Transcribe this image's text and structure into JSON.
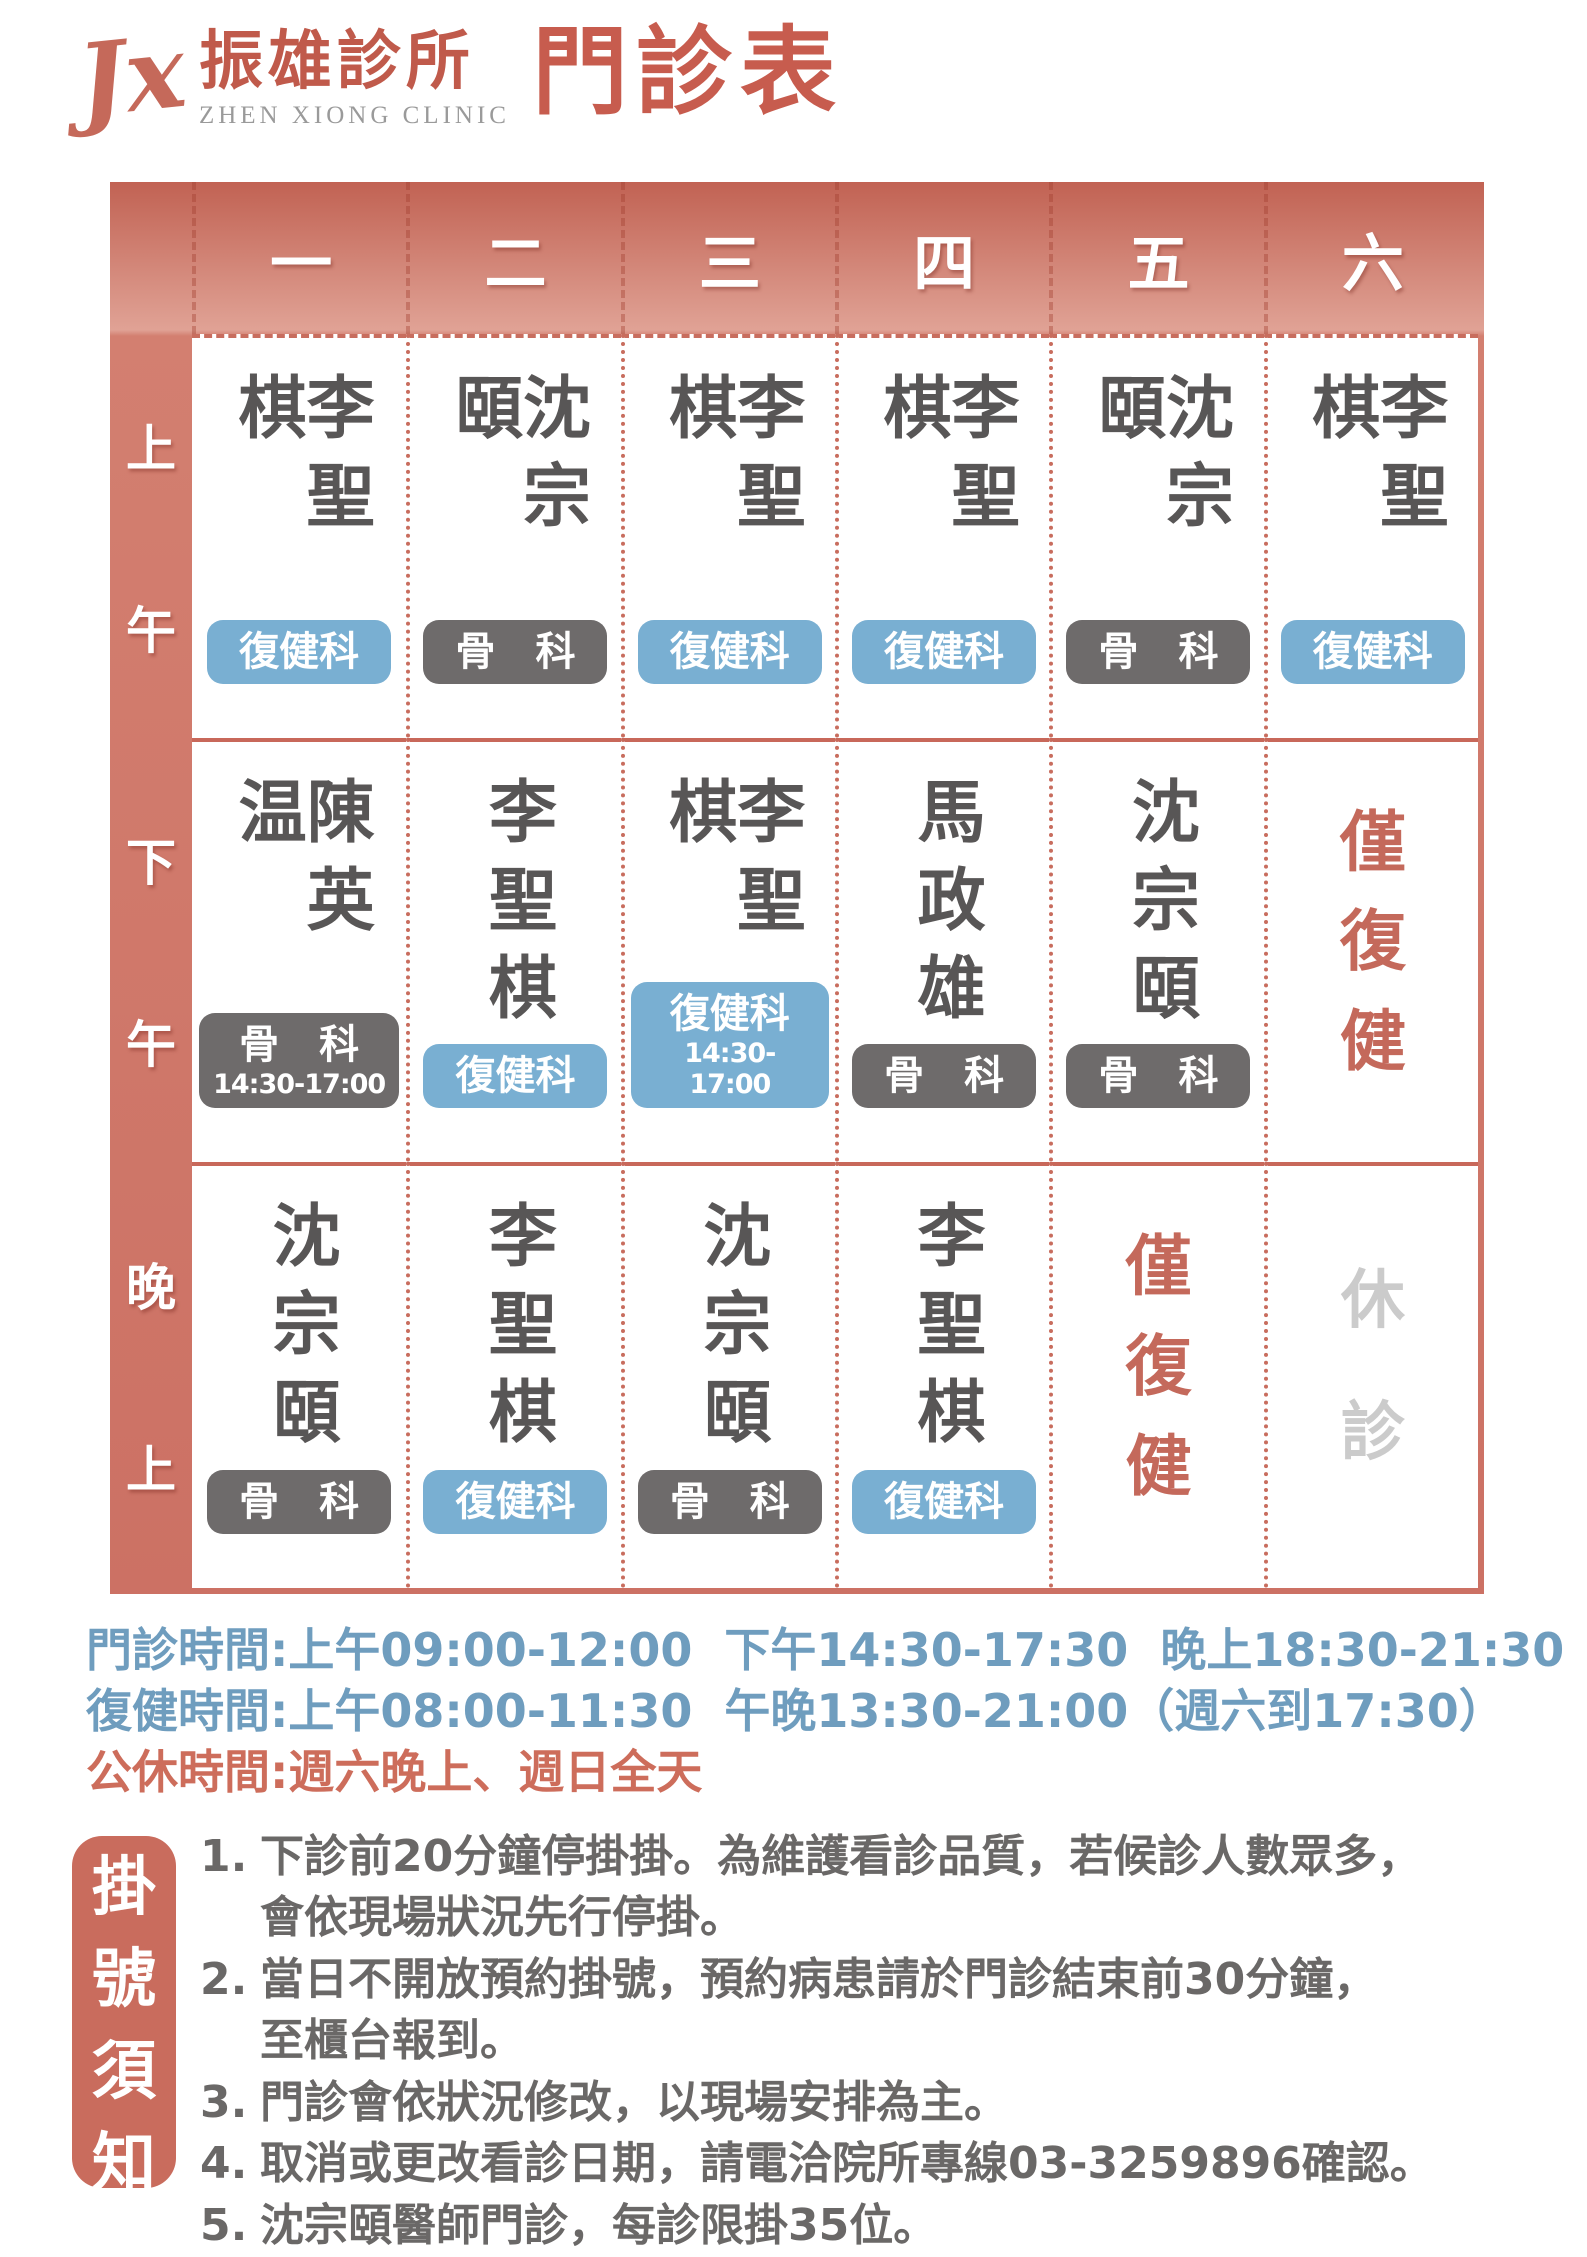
{
  "header": {
    "logo_monogram": "Jx",
    "clinic_name": "振雄診所",
    "clinic_name_en": "ZHEN XIONG CLINIC",
    "page_title": "門診表"
  },
  "colors": {
    "salmon": "#cc7164",
    "salmon_dark": "#c16253",
    "salmon_light": "#e0a295",
    "badge_rehab_blue": "#79afd2",
    "badge_ortho_gray": "#6e6b6b",
    "doctor_name_gray": "#585656",
    "hours_blue": "#6f9dbe",
    "hours_red": "#cd6d5b",
    "closed_gray": "#cbcbcb"
  },
  "table": {
    "day_headers": [
      "一",
      "二",
      "三",
      "四",
      "五",
      "六"
    ],
    "rows": [
      {
        "period": "上午",
        "cells": [
          {
            "doctor": "李聖棋",
            "badge": {
              "text": "復健科",
              "type": "rehab"
            }
          },
          {
            "doctor": "沈宗頤",
            "badge": {
              "text": "骨　科",
              "type": "ortho"
            }
          },
          {
            "doctor": "李聖棋",
            "badge": {
              "text": "復健科",
              "type": "rehab"
            }
          },
          {
            "doctor": "李聖棋",
            "badge": {
              "text": "復健科",
              "type": "rehab"
            }
          },
          {
            "doctor": "沈宗頤",
            "badge": {
              "text": "骨　科",
              "type": "ortho"
            }
          },
          {
            "doctor": "李聖棋",
            "badge": {
              "text": "復健科",
              "type": "rehab"
            }
          }
        ]
      },
      {
        "period": "下午",
        "cells": [
          {
            "doctor": "陳英温",
            "badge": {
              "text": "骨　科",
              "type": "ortho",
              "time": "14:30-17:00"
            }
          },
          {
            "doctor": "李聖棋",
            "badge": {
              "text": "復健科",
              "type": "rehab"
            }
          },
          {
            "doctor": "李聖棋",
            "badge": {
              "text": "復健科",
              "type": "rehab",
              "time": "14:30-17:00"
            }
          },
          {
            "doctor": "馬政雄",
            "badge": {
              "text": "骨　科",
              "type": "ortho"
            }
          },
          {
            "doctor": "沈宗頤",
            "badge": {
              "text": "骨　科",
              "type": "ortho"
            }
          },
          {
            "special": "僅復健",
            "special_type": "rehab-only"
          }
        ]
      },
      {
        "period": "晚上",
        "cells": [
          {
            "doctor": "沈宗頤",
            "badge": {
              "text": "骨　科",
              "type": "ortho"
            }
          },
          {
            "doctor": "李聖棋",
            "badge": {
              "text": "復健科",
              "type": "rehab"
            }
          },
          {
            "doctor": "沈宗頤",
            "badge": {
              "text": "骨　科",
              "type": "ortho"
            }
          },
          {
            "doctor": "李聖棋",
            "badge": {
              "text": "復健科",
              "type": "rehab"
            }
          },
          {
            "special": "僅復健",
            "special_type": "rehab-only"
          },
          {
            "special": "休診",
            "special_type": "closed"
          }
        ]
      }
    ]
  },
  "hours": {
    "clinic": "門診時間:上午09:00-12:00  下午14:30-17:30  晚上18:30-21:30",
    "rehab": "復健時間:上午08:00-11:30  午晚13:30-21:00（週六到17:30）",
    "closed": "公休時間:週六晚上、週日全天"
  },
  "notice": {
    "title": "掛號須知",
    "items": [
      {
        "num": "1.",
        "text": "下診前20分鐘停掛掛。為維護看診品質，若候診人數眾多，\n會依現場狀況先行停掛。"
      },
      {
        "num": "2.",
        "text": "當日不開放預約掛號，預約病患請於門診結束前30分鐘，\n至櫃台報到。"
      },
      {
        "num": "3.",
        "text": "門診會依狀況修改，以現場安排為主。"
      },
      {
        "num": "4.",
        "text": "取消或更改看診日期，請電洽院所專線03-3259896確認。"
      },
      {
        "num": "5.",
        "text": "沈宗頤醫師門診，每診限掛35位。"
      }
    ]
  }
}
